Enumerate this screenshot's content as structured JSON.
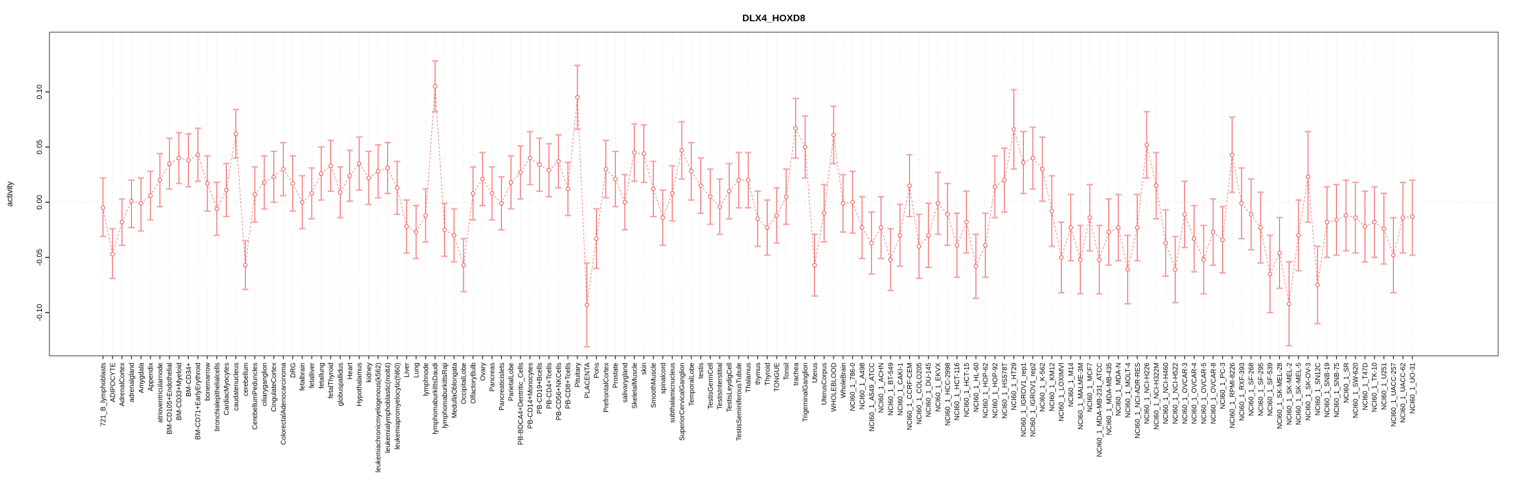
{
  "title": "DLX4_HOXD8",
  "chart_data": {
    "type": "line",
    "title": "DLX4_HOXD8",
    "xlabel": "",
    "ylabel": "activity",
    "ylim": [
      -0.139,
      0.154
    ],
    "yticks": [
      -0.1,
      -0.05,
      0.0,
      0.05,
      0.1
    ],
    "ytick_labels": [
      "-0.10",
      "-0.05",
      "0.00",
      "0.05",
      "0.10"
    ],
    "grid": "vertical dotted gridline per category; dotted horizontal line at y=0",
    "legend_position": "none",
    "marker": "open-circle with error bars",
    "colors": {
      "series": "#f25c5c",
      "error_cap": "#f8a3a3",
      "connector": "#f58888",
      "gridline": "#d9d9d9",
      "zero_line": "#dccccc",
      "plot_border": "#808080",
      "axis_tick": "#222222"
    },
    "points": [
      [
        "721_B_lymphoblasts",
        -0.005,
        -0.031,
        0.022
      ],
      [
        "ADIPOCYTE",
        -0.047,
        -0.069,
        -0.024
      ],
      [
        "AdrenalCortex",
        -0.018,
        -0.039,
        0.003
      ],
      [
        "adrenalgland",
        0.001,
        -0.023,
        0.02
      ],
      [
        "Amygdala",
        -0.001,
        -0.026,
        0.022
      ],
      [
        "Appendix",
        0.006,
        -0.016,
        0.028
      ],
      [
        "atrioventricularnode",
        0.02,
        -0.004,
        0.044
      ],
      [
        "BM-CD105+Endothelial",
        0.035,
        0.012,
        0.058
      ],
      [
        "BM-CD33+Myeloid",
        0.04,
        0.017,
        0.063
      ],
      [
        "BM-CD34+",
        0.038,
        0.014,
        0.062
      ],
      [
        "BM-CD71+EarlyErythroid",
        0.043,
        0.019,
        0.067
      ],
      [
        "bonemarrow",
        0.017,
        -0.008,
        0.042
      ],
      [
        "bronchialepithelialcells",
        -0.006,
        -0.03,
        0.018
      ],
      [
        "CardiacMyocytes",
        0.011,
        -0.013,
        0.035
      ],
      [
        "caudatenucleus",
        0.062,
        0.04,
        0.084
      ],
      [
        "cerebellum",
        -0.057,
        -0.079,
        -0.035
      ],
      [
        "CerebellumPeduncles",
        0.007,
        -0.018,
        0.032
      ],
      [
        "ciliaryganglion",
        0.018,
        -0.006,
        0.042
      ],
      [
        "CingulateCortex",
        0.023,
        0.0,
        0.046
      ],
      [
        "ColorectalAdenocarcinoma",
        0.03,
        0.006,
        0.054
      ],
      [
        "DRG",
        0.017,
        -0.008,
        0.042
      ],
      [
        "fetalbrain",
        0.0,
        -0.024,
        0.024
      ],
      [
        "fetalliver",
        0.008,
        -0.015,
        0.031
      ],
      [
        "fetallung",
        0.026,
        0.002,
        0.05
      ],
      [
        "fetalThyroid",
        0.033,
        0.01,
        0.056
      ],
      [
        "globuspallidus",
        0.009,
        -0.014,
        0.032
      ],
      [
        "Heart",
        0.024,
        0.001,
        0.047
      ],
      [
        "Hypothalamus",
        0.035,
        0.011,
        0.059
      ],
      [
        "kidney",
        0.022,
        -0.002,
        0.046
      ],
      [
        "leukemiachronicmyelogenous(k562)",
        0.028,
        0.004,
        0.052
      ],
      [
        "leukemialymphoblastic(molt4)",
        0.031,
        0.008,
        0.054
      ],
      [
        "leukemiapromyelocytic(hl60)",
        0.013,
        -0.011,
        0.037
      ],
      [
        "Liver",
        -0.022,
        -0.046,
        0.002
      ],
      [
        "Lung",
        -0.027,
        -0.051,
        -0.003
      ],
      [
        "lymphnode",
        -0.012,
        -0.036,
        0.012
      ],
      [
        "lymphomaburkittsDaudi",
        0.105,
        0.082,
        0.128
      ],
      [
        "lymphomaburkittsRaji",
        -0.025,
        -0.049,
        -0.001
      ],
      [
        "MedullaOblongata",
        -0.03,
        -0.054,
        -0.006
      ],
      [
        "OccipitalLobe",
        -0.057,
        -0.081,
        -0.033
      ],
      [
        "OlfactoryBulb",
        0.008,
        -0.016,
        0.032
      ],
      [
        "Ovary",
        0.021,
        -0.003,
        0.045
      ],
      [
        "Pancreas",
        0.008,
        -0.016,
        0.032
      ],
      [
        "Pancreaticislets",
        -0.001,
        -0.025,
        0.023
      ],
      [
        "ParietalLobe",
        0.018,
        -0.006,
        0.042
      ],
      [
        "PB-BDCA4+Dentritic_Cells",
        0.027,
        0.003,
        0.051
      ],
      [
        "PB-CD14+Monocytes",
        0.04,
        0.016,
        0.064
      ],
      [
        "PB-CD19+Bcells",
        0.034,
        0.01,
        0.058
      ],
      [
        "PB-CD4+Tcells",
        0.029,
        0.005,
        0.053
      ],
      [
        "PB-CD56+NKCells",
        0.037,
        0.013,
        0.061
      ],
      [
        "PB-CD8+Tcells",
        0.012,
        -0.012,
        0.036
      ],
      [
        "Pituitary",
        0.095,
        0.066,
        0.124
      ],
      [
        "PLACENTA",
        -0.093,
        -0.131,
        -0.055
      ],
      [
        "Pons",
        -0.033,
        -0.06,
        -0.006
      ],
      [
        "PrefrontalCortex",
        0.03,
        0.004,
        0.056
      ],
      [
        "Prostate",
        0.021,
        -0.004,
        0.046
      ],
      [
        "salivarygland",
        0.0,
        -0.025,
        0.025
      ],
      [
        "SkeletalMuscle",
        0.045,
        0.019,
        0.071
      ],
      [
        "skin",
        0.044,
        0.018,
        0.07
      ],
      [
        "SmoothMuscle",
        0.012,
        -0.013,
        0.037
      ],
      [
        "spinalcord",
        -0.014,
        -0.039,
        0.011
      ],
      [
        "subthalamicnucleus",
        0.008,
        -0.017,
        0.033
      ],
      [
        "SuperiorCervicalGanglion",
        0.047,
        0.021,
        0.073
      ],
      [
        "TemporalLobe",
        0.028,
        0.002,
        0.054
      ],
      [
        "testis",
        0.015,
        -0.01,
        0.04
      ],
      [
        "TestisGermCell",
        0.005,
        -0.02,
        0.03
      ],
      [
        "TestisInterstitial",
        -0.004,
        -0.029,
        0.021
      ],
      [
        "TestisLeydigCell",
        0.01,
        -0.015,
        0.035
      ],
      [
        "TestisSeminiferousTubule",
        0.02,
        -0.005,
        0.045
      ],
      [
        "Thalamus",
        0.02,
        -0.005,
        0.045
      ],
      [
        "thymus",
        -0.015,
        -0.04,
        0.01
      ],
      [
        "Thyroid",
        -0.023,
        -0.048,
        0.002
      ],
      [
        "TONGUE",
        -0.012,
        -0.037,
        0.013
      ],
      [
        "Tonsil",
        0.005,
        -0.02,
        0.03
      ],
      [
        "trachea",
        0.067,
        0.04,
        0.094
      ],
      [
        "TrigeminalGanglion",
        0.05,
        0.022,
        0.078
      ],
      [
        "Uterus",
        -0.057,
        -0.085,
        -0.029
      ],
      [
        "UterusCorpus",
        -0.01,
        -0.036,
        0.016
      ],
      [
        "WHOLEBLOOD",
        0.061,
        0.035,
        0.087
      ],
      [
        "WholeBrain",
        -0.001,
        -0.027,
        0.025
      ],
      [
        "NCI60_1_786-0",
        0.0,
        -0.028,
        0.028
      ],
      [
        "NCI60_1_A498",
        -0.023,
        -0.051,
        0.005
      ],
      [
        "NCI60_1_A549_ATCC",
        -0.037,
        -0.065,
        -0.009
      ],
      [
        "NCI60_1_ACHN",
        -0.023,
        -0.051,
        0.005
      ],
      [
        "NCI60_1_BT-549",
        -0.052,
        -0.08,
        -0.024
      ],
      [
        "NCI60_1_CAKI-1",
        -0.03,
        -0.058,
        -0.002
      ],
      [
        "NCI60_1_CCRF-CEM",
        0.015,
        -0.013,
        0.043
      ],
      [
        "NCI60_1_COLO205",
        -0.04,
        -0.069,
        -0.011
      ],
      [
        "NCI60_1_DU-145",
        -0.03,
        -0.059,
        -0.001
      ],
      [
        "NCI60_1_EKVX",
        -0.001,
        -0.029,
        0.027
      ],
      [
        "NCI60_1_HCC-2998",
        -0.011,
        -0.039,
        0.017
      ],
      [
        "NCI60_1_HCT-116",
        -0.039,
        -0.068,
        -0.01
      ],
      [
        "NCI60_1_HCT-15",
        -0.018,
        -0.046,
        0.01
      ],
      [
        "NCI60_1_HL-60",
        -0.058,
        -0.087,
        -0.029
      ],
      [
        "NCI60_1_HOP-62",
        -0.039,
        -0.068,
        -0.01
      ],
      [
        "NCI60_1_HOP-92",
        0.014,
        -0.014,
        0.042
      ],
      [
        "NCI60_1_HS578T",
        0.02,
        -0.009,
        0.049
      ],
      [
        "NCI60_1_HT29",
        0.066,
        0.03,
        0.102
      ],
      [
        "NCI60_1_IGROV1_rep1",
        0.036,
        0.008,
        0.064
      ],
      [
        "NCI60_1_IGROV1_rep2",
        0.04,
        0.012,
        0.068
      ],
      [
        "NCI60_1_K-562",
        0.03,
        0.001,
        0.059
      ],
      [
        "NCI60_1_KM12",
        -0.008,
        -0.04,
        0.024
      ],
      [
        "NCI60_1_LOXIMVI",
        -0.05,
        -0.082,
        -0.018
      ],
      [
        "NCI60_1_M14",
        -0.023,
        -0.053,
        0.007
      ],
      [
        "NCI60_1_MALME-3M",
        -0.052,
        -0.083,
        -0.021
      ],
      [
        "NCI60_1_MCF7",
        -0.014,
        -0.044,
        0.016
      ],
      [
        "NCI60_1_MDA-MB-231_ATCC",
        -0.052,
        -0.083,
        -0.021
      ],
      [
        "NCI60_1_MDA-MB-435",
        -0.027,
        -0.057,
        0.003
      ],
      [
        "NCI60_1_MDA-N",
        -0.023,
        -0.053,
        0.007
      ],
      [
        "NCI60_1_MOLT-4",
        -0.061,
        -0.092,
        -0.03
      ],
      [
        "NCI60_1_NCI-ADR-RES",
        -0.023,
        -0.053,
        0.007
      ],
      [
        "NCI60_1_NCI-H226",
        0.052,
        0.022,
        0.082
      ],
      [
        "NCI60_1_NCI-H322M",
        0.015,
        -0.015,
        0.045
      ],
      [
        "NCI60_1_NCI-H460",
        -0.037,
        -0.067,
        -0.007
      ],
      [
        "NCI60_1_NCI-H522",
        -0.061,
        -0.091,
        -0.031
      ],
      [
        "NCI60_1_OVCAR-3",
        -0.011,
        -0.041,
        0.019
      ],
      [
        "NCI60_1_OVCAR-4",
        -0.033,
        -0.063,
        -0.003
      ],
      [
        "NCI60_1_OVCAR-5",
        -0.052,
        -0.083,
        -0.021
      ],
      [
        "NCI60_1_OVCAR-8",
        -0.027,
        -0.057,
        0.003
      ],
      [
        "NCI60_1_PC-3",
        -0.034,
        -0.064,
        -0.004
      ],
      [
        "NCI60_1_RPMI-8226",
        0.043,
        0.009,
        0.077
      ],
      [
        "NCI60_1_RXF-393",
        -0.001,
        -0.033,
        0.031
      ],
      [
        "NCI60_1_SF-268",
        -0.011,
        -0.043,
        0.021
      ],
      [
        "NCI60_1_SF-295",
        -0.023,
        -0.055,
        0.009
      ],
      [
        "NCI60_1_SF-539",
        -0.065,
        -0.1,
        -0.03
      ],
      [
        "NCI60_1_SK-MEL-28",
        -0.046,
        -0.078,
        -0.014
      ],
      [
        "NCI60_1_SK-MEL-2",
        -0.092,
        -0.13,
        -0.054
      ],
      [
        "NCI60_1_SK-MEL-5",
        -0.03,
        -0.062,
        0.002
      ],
      [
        "NCI60_1_SK-OV-3",
        0.023,
        -0.018,
        0.064
      ],
      [
        "NCI60_1_SN12C",
        -0.075,
        -0.11,
        -0.04
      ],
      [
        "NCI60_1_SNB-19",
        -0.018,
        -0.05,
        0.014
      ],
      [
        "NCI60_1_SNB-75",
        -0.016,
        -0.048,
        0.016
      ],
      [
        "NCI60_1_SR",
        -0.012,
        -0.044,
        0.02
      ],
      [
        "NCI60_1_SW-620",
        -0.014,
        -0.046,
        0.018
      ],
      [
        "NCI60_1_T47D",
        -0.022,
        -0.054,
        0.01
      ],
      [
        "NCI60_1_TK-10",
        -0.018,
        -0.05,
        0.014
      ],
      [
        "NCI60_1_U251",
        -0.024,
        -0.056,
        0.008
      ],
      [
        "NCI60_1_UACC-257",
        -0.048,
        -0.082,
        -0.014
      ],
      [
        "NCI60_1_UACC-62",
        -0.014,
        -0.046,
        0.018
      ],
      [
        "NCI60_1_UO-31",
        -0.013,
        -0.048,
        0.02
      ]
    ]
  }
}
